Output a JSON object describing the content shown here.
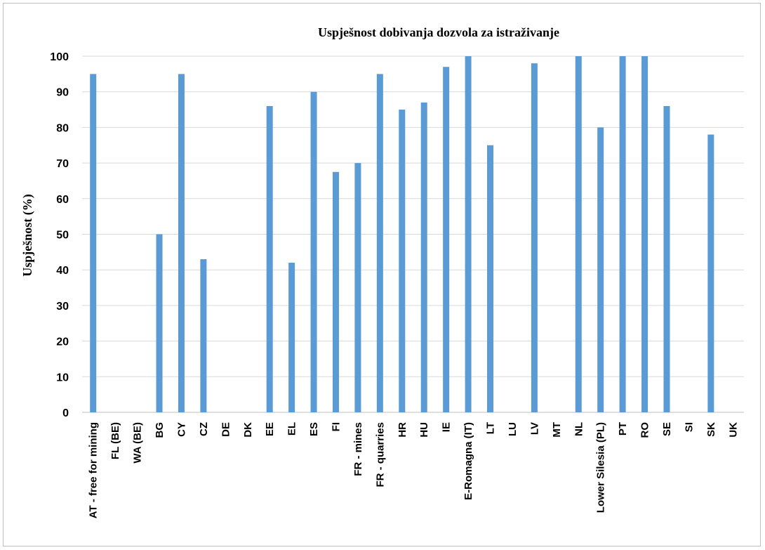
{
  "chart_data": {
    "type": "bar",
    "title": "Uspješnost dobivanja dozvola za istraživanje",
    "xlabel": "",
    "ylabel": "Uspješnost  (%)",
    "ylim": [
      0,
      100
    ],
    "yticks": [
      0,
      10,
      20,
      30,
      40,
      50,
      60,
      70,
      80,
      90,
      100
    ],
    "grid": true,
    "color": "#5b9bd5",
    "categories": [
      "AT - free for mining",
      "FL (BE)",
      "WA (BE)",
      "BG",
      "CY",
      "CZ",
      "DE",
      "DK",
      "EE",
      "EL",
      "ES",
      "FI",
      "FR - mines",
      "FR - quarries",
      "HR",
      "HU",
      "IE",
      "E-Romagna (IT)",
      "LT",
      "LU",
      "LV",
      "MT",
      "NL",
      "Lower Silesia (PL)",
      "PT",
      "RO",
      "SE",
      "SI",
      "SK",
      "UK"
    ],
    "values": [
      95,
      0,
      0,
      50,
      95,
      43,
      0,
      0,
      86,
      42,
      90,
      67.5,
      70,
      95,
      85,
      87,
      97,
      100,
      75,
      0,
      98,
      0,
      100,
      80,
      100,
      100,
      86,
      0,
      78,
      0
    ]
  }
}
